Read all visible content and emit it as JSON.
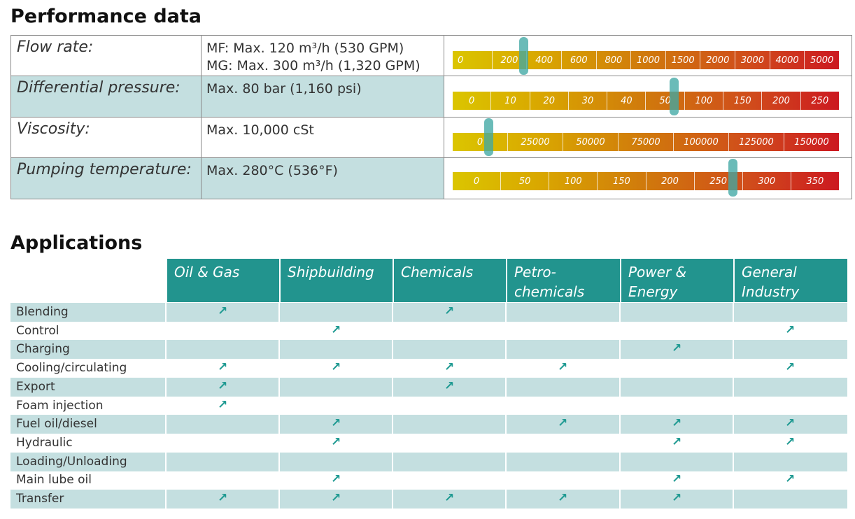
{
  "performance": {
    "title": "Performance data",
    "rows": [
      {
        "label": "Flow rate:",
        "value_lines": [
          "MF: Max. 120 m³/h (530 GPM)",
          "MG: Max. 300 m³/h (1,320 GPM)"
        ],
        "scale_ticks": [
          "0",
          "200",
          "400",
          "600",
          "800",
          "1000",
          "1500",
          "2000",
          "3000",
          "4000",
          "5000"
        ],
        "marker_value": "300"
      },
      {
        "label": "Differential pressure:",
        "value_lines": [
          "Max. 80 bar (1,160 psi)"
        ],
        "scale_ticks": [
          "0",
          "10",
          "20",
          "30",
          "40",
          "50",
          "100",
          "150",
          "200",
          "250"
        ],
        "marker_value": "80"
      },
      {
        "label": "Viscosity:",
        "value_lines": [
          "Max. 10,000 cSt"
        ],
        "scale_ticks": [
          "0",
          "25000",
          "50000",
          "75000",
          "100000",
          "125000",
          "150000"
        ],
        "marker_value": "10000"
      },
      {
        "label": "Pumping temperature:",
        "value_lines": [
          "Max. 280°C (536°F)"
        ],
        "scale_ticks": [
          "0",
          "50",
          "100",
          "150",
          "200",
          "250",
          "300",
          "350"
        ],
        "marker_value": "280"
      }
    ]
  },
  "applications": {
    "title": "Applications",
    "columns": [
      {
        "lines": [
          "Oil & Gas"
        ]
      },
      {
        "lines": [
          "Shipbuilding"
        ]
      },
      {
        "lines": [
          "Chemicals"
        ]
      },
      {
        "lines": [
          "Petro-",
          "chemicals"
        ]
      },
      {
        "lines": [
          "Power &",
          "Energy"
        ]
      },
      {
        "lines": [
          "General",
          "Industry"
        ]
      }
    ],
    "arrow_glyph": "↗",
    "rows": [
      {
        "label": "Blending",
        "marks": [
          1,
          0,
          1,
          0,
          0,
          0
        ]
      },
      {
        "label": "Control",
        "marks": [
          0,
          1,
          0,
          0,
          0,
          1
        ]
      },
      {
        "label": "Charging",
        "marks": [
          0,
          0,
          0,
          0,
          1,
          0
        ]
      },
      {
        "label": "Cooling/circulating",
        "marks": [
          1,
          1,
          1,
          1,
          0,
          1
        ]
      },
      {
        "label": "Export",
        "marks": [
          1,
          0,
          1,
          0,
          0,
          0
        ]
      },
      {
        "label": "Foam injection",
        "marks": [
          1,
          0,
          0,
          0,
          0,
          0
        ]
      },
      {
        "label": "Fuel oil/diesel",
        "marks": [
          0,
          1,
          0,
          1,
          1,
          1
        ]
      },
      {
        "label": "Hydraulic",
        "marks": [
          0,
          1,
          0,
          0,
          1,
          1
        ]
      },
      {
        "label": "Loading/Unloading",
        "marks": [
          0,
          0,
          0,
          0,
          0,
          0
        ]
      },
      {
        "label": "Main lube oil",
        "marks": [
          0,
          1,
          0,
          0,
          1,
          1
        ]
      },
      {
        "label": "Transfer",
        "marks": [
          1,
          1,
          1,
          1,
          1,
          0
        ]
      }
    ],
    "colors": {
      "accent": "#22948e",
      "tint": "#c4dfe0",
      "arrow": "#1f9a92"
    }
  }
}
